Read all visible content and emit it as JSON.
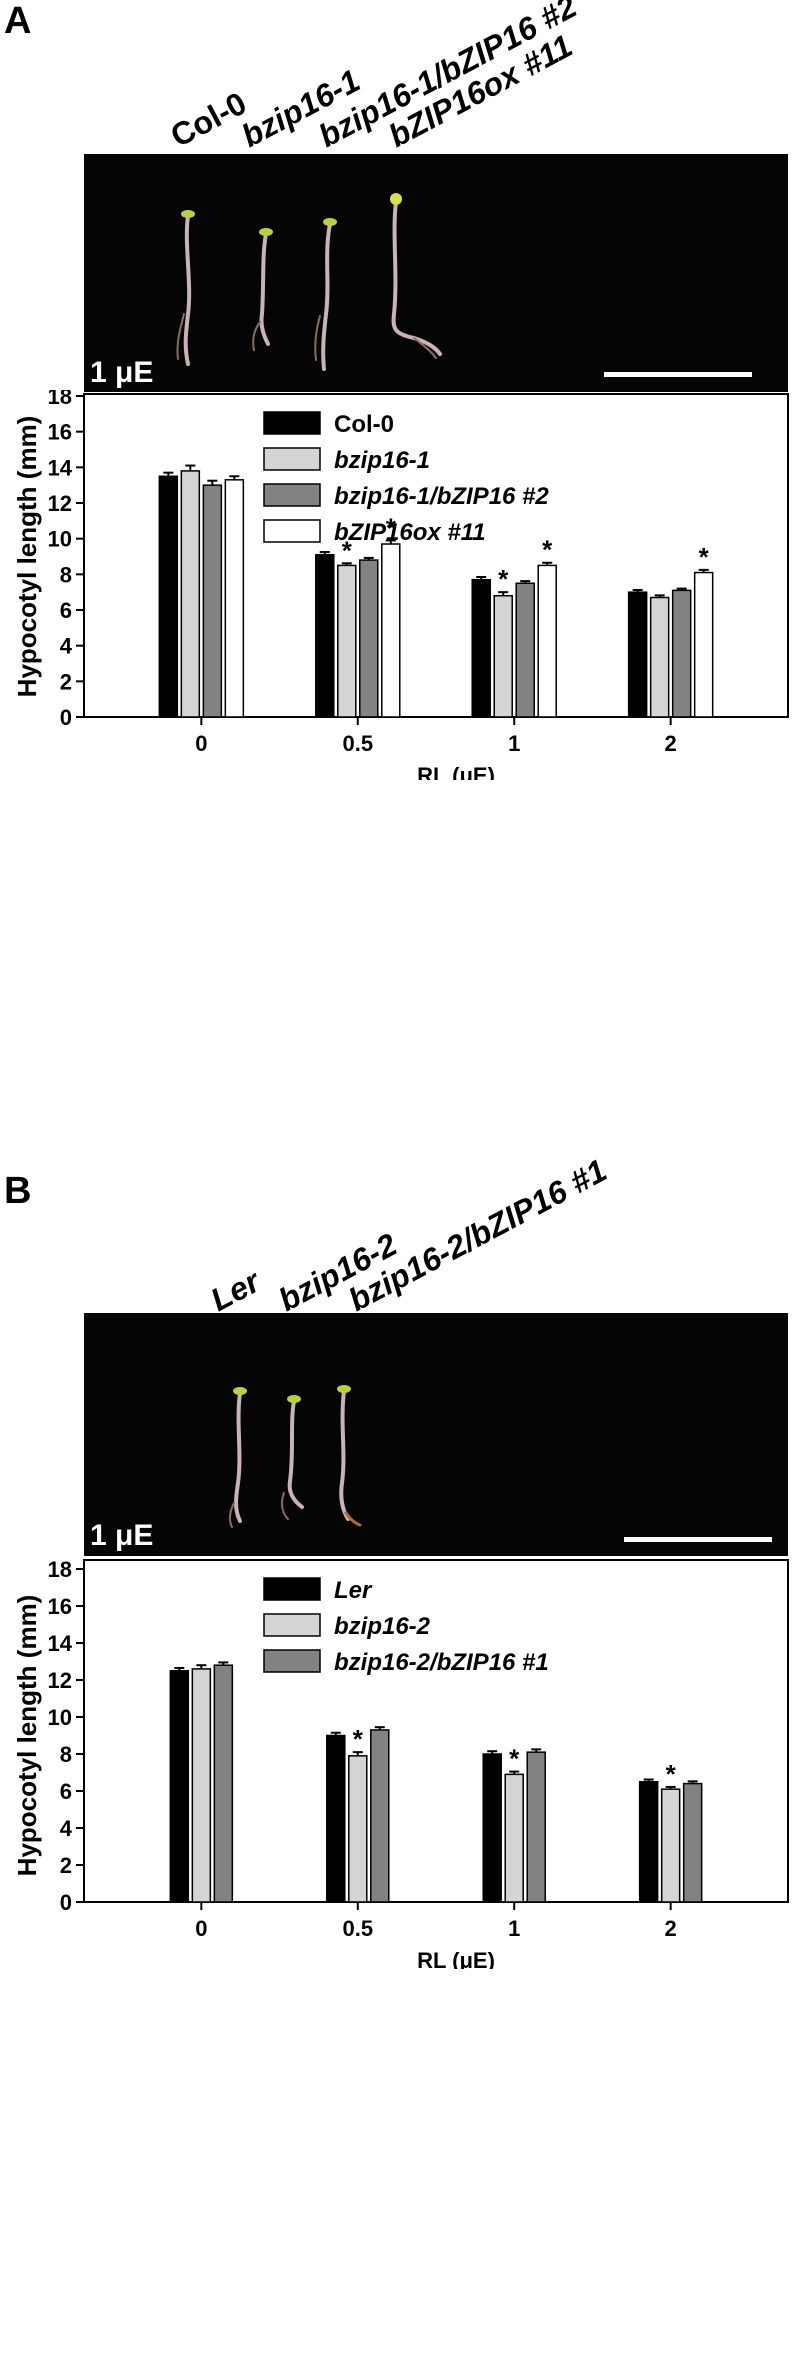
{
  "panels": [
    {
      "letter": "A",
      "genotypes": [
        "Col-0",
        "bzip16-1",
        "bzip16-1/bZIP16 #2",
        "bZIP16ox #11"
      ],
      "photo_label": "1 μE",
      "chart_data": {
        "type": "bar",
        "categories": [
          "0",
          "0.5",
          "1",
          "2"
        ],
        "xlabel": "RL (μE)",
        "ylabel": "Hypocotyl length (mm)",
        "ylim": [
          0,
          18
        ],
        "yticks": [
          0,
          2,
          4,
          6,
          8,
          10,
          12,
          14,
          16,
          18
        ],
        "legend": "top-right",
        "series": [
          {
            "name": "Col-0",
            "color": "#000000",
            "values": [
              13.5,
              9.1,
              7.7,
              7.0
            ],
            "errors": [
              0.2,
              0.15,
              0.15,
              0.12
            ],
            "significant": [
              false,
              false,
              false,
              false
            ]
          },
          {
            "name": "bzip16-1",
            "color": "#d4d4d4",
            "values": [
              13.8,
              8.5,
              6.8,
              6.7
            ],
            "errors": [
              0.3,
              0.12,
              0.2,
              0.12
            ],
            "significant": [
              false,
              true,
              true,
              false
            ]
          },
          {
            "name": "bzip16-1/bZIP16 #2",
            "color": "#828282",
            "values": [
              13.0,
              8.8,
              7.5,
              7.1
            ],
            "errors": [
              0.25,
              0.12,
              0.12,
              0.1
            ],
            "significant": [
              false,
              false,
              false,
              false
            ]
          },
          {
            "name": "bZIP16ox #11",
            "color": "#ffffff",
            "values": [
              13.3,
              9.7,
              8.5,
              8.1
            ],
            "errors": [
              0.2,
              0.2,
              0.15,
              0.15
            ],
            "significant": [
              false,
              true,
              true,
              true
            ]
          }
        ]
      }
    },
    {
      "letter": "B",
      "genotypes": [
        "Ler",
        "bzip16-2",
        "bzip16-2/bZIP16 #1"
      ],
      "photo_label": "1 μE",
      "chart_data": {
        "type": "bar",
        "categories": [
          "0",
          "0.5",
          "1",
          "2"
        ],
        "xlabel": "RL (μE)",
        "ylabel": "Hypocotyl length (mm)",
        "ylim": [
          0,
          18
        ],
        "yticks": [
          0,
          2,
          4,
          6,
          8,
          10,
          12,
          14,
          16,
          18
        ],
        "legend": "top-right",
        "series": [
          {
            "name": "Ler",
            "color": "#000000",
            "values": [
              12.5,
              9.0,
              8.0,
              6.5
            ],
            "errors": [
              0.15,
              0.15,
              0.15,
              0.12
            ],
            "significant": [
              false,
              false,
              false,
              false
            ]
          },
          {
            "name": "bzip16-2",
            "color": "#d4d4d4",
            "values": [
              12.6,
              7.9,
              6.9,
              6.1
            ],
            "errors": [
              0.2,
              0.2,
              0.15,
              0.12
            ],
            "significant": [
              false,
              true,
              true,
              true
            ]
          },
          {
            "name": "bzip16-2/bZIP16 #1",
            "color": "#828282",
            "values": [
              12.8,
              9.3,
              8.1,
              6.4
            ],
            "errors": [
              0.15,
              0.15,
              0.15,
              0.12
            ],
            "significant": [
              false,
              false,
              false,
              false
            ]
          }
        ]
      }
    }
  ]
}
